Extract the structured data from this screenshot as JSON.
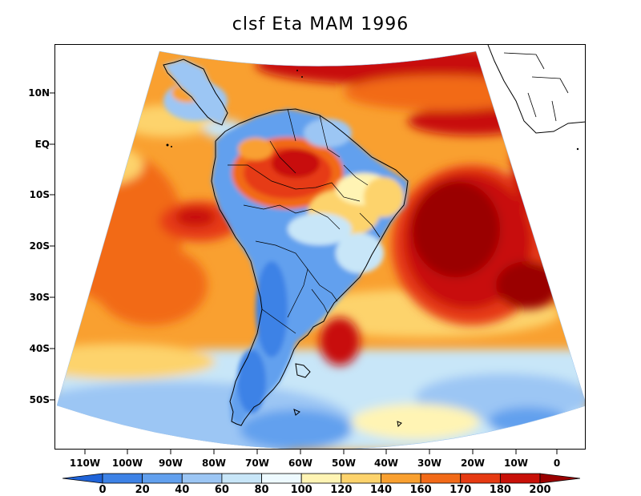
{
  "title": "clsf Eta MAM 1996",
  "map": {
    "lat_ticks": [
      "10N",
      "EQ",
      "10S",
      "20S",
      "30S",
      "40S",
      "50S"
    ],
    "lon_ticks": [
      "110W",
      "100W",
      "90W",
      "80W",
      "70W",
      "60W",
      "50W",
      "40W",
      "30W",
      "20W",
      "10W",
      "0"
    ]
  },
  "colorbar": {
    "levels": [
      "0",
      "20",
      "40",
      "60",
      "80",
      "100",
      "120",
      "140",
      "160",
      "170",
      "180",
      "200"
    ],
    "colors": [
      "#1f63d8",
      "#3d82e6",
      "#62a0ee",
      "#9cc6f4",
      "#c8e6f8",
      "#eefaff",
      "#fff4b4",
      "#fdd36c",
      "#f9a030",
      "#f26a18",
      "#e63a12",
      "#c81008",
      "#9a0000"
    ]
  }
}
